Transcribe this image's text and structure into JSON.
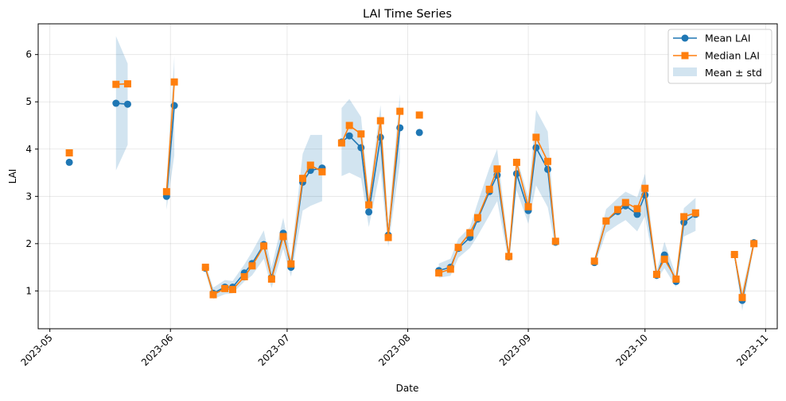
{
  "chart_data": {
    "type": "line",
    "title": "LAI Time Series",
    "xlabel": "Date",
    "ylabel": "LAI",
    "xlim": [
      "2023-04-28",
      "2023-11-04"
    ],
    "ylim": [
      0.2,
      6.65
    ],
    "x_ticks": [
      "2023-05",
      "2023-06",
      "2023-07",
      "2023-08",
      "2023-09",
      "2023-10",
      "2023-11"
    ],
    "y_ticks": [
      1,
      2,
      3,
      4,
      5,
      6
    ],
    "grid": true,
    "legend_position": "top-right",
    "legend": {
      "mean": "Mean LAI",
      "median": "Median LAI",
      "band": "Mean ± std"
    },
    "colors": {
      "mean": "#1f77b4",
      "median": "#ff7f0e",
      "band": "#1f77b4"
    },
    "segments": [
      {
        "dates": [
          "2023-05-06"
        ],
        "mean": [
          3.72
        ],
        "median": [
          3.92
        ],
        "std": [
          0.0
        ]
      },
      {
        "dates": [
          "2023-05-18",
          "2023-05-21"
        ],
        "mean": [
          4.97,
          4.95
        ],
        "median": [
          5.37,
          5.38
        ],
        "std": [
          1.42,
          0.86
        ]
      },
      {
        "dates": [
          "2023-05-31",
          "2023-06-02"
        ],
        "mean": [
          3.0,
          4.92
        ],
        "median": [
          3.1,
          5.42
        ],
        "std": [
          0.28,
          1.05
        ]
      },
      {
        "dates": [
          "2023-06-10",
          "2023-06-12",
          "2023-06-15",
          "2023-06-17",
          "2023-06-20",
          "2023-06-22",
          "2023-06-25",
          "2023-06-27",
          "2023-06-30",
          "2023-07-02",
          "2023-07-05",
          "2023-07-07",
          "2023-07-10"
        ],
        "mean": [
          1.48,
          0.95,
          1.08,
          1.08,
          1.38,
          1.58,
          1.98,
          1.28,
          2.22,
          1.5,
          3.3,
          3.55,
          3.6
        ],
        "median": [
          1.5,
          0.92,
          1.05,
          1.03,
          1.3,
          1.53,
          1.95,
          1.25,
          2.15,
          1.57,
          3.38,
          3.66,
          3.52
        ],
        "std": [
          0.08,
          0.12,
          0.15,
          0.13,
          0.18,
          0.25,
          0.3,
          0.22,
          0.33,
          0.2,
          0.6,
          0.75,
          0.7
        ]
      },
      {
        "dates": [
          "2023-07-15",
          "2023-07-17",
          "2023-07-20",
          "2023-07-22",
          "2023-07-25",
          "2023-07-27",
          "2023-07-30"
        ],
        "mean": [
          4.15,
          4.28,
          4.03,
          2.67,
          4.25,
          2.18,
          4.45
        ],
        "median": [
          4.13,
          4.5,
          4.32,
          2.82,
          4.6,
          2.13,
          4.8
        ],
        "std": [
          0.72,
          0.78,
          0.65,
          0.32,
          0.68,
          0.25,
          0.72
        ]
      },
      {
        "dates": [
          "2023-08-04"
        ],
        "mean": [
          4.35
        ],
        "median": [
          4.72
        ],
        "std": [
          0.0
        ]
      },
      {
        "dates": [
          "2023-08-09",
          "2023-08-12",
          "2023-08-14",
          "2023-08-17",
          "2023-08-19",
          "2023-08-22",
          "2023-08-24",
          "2023-08-27",
          "2023-08-29",
          "2023-09-01",
          "2023-09-03",
          "2023-09-06",
          "2023-09-08"
        ],
        "mean": [
          1.43,
          1.5,
          1.9,
          2.13,
          2.52,
          3.1,
          3.45,
          1.72,
          3.48,
          2.7,
          4.03,
          3.57,
          2.03
        ],
        "median": [
          1.38,
          1.46,
          1.92,
          2.23,
          2.55,
          3.15,
          3.58,
          1.73,
          3.72,
          2.78,
          4.25,
          3.74,
          2.05
        ],
        "std": [
          0.15,
          0.18,
          0.2,
          0.22,
          0.35,
          0.5,
          0.55,
          0.12,
          0.35,
          0.28,
          0.8,
          0.8,
          0.12
        ]
      },
      {
        "dates": [
          "2023-09-18",
          "2023-09-21",
          "2023-09-24",
          "2023-09-26",
          "2023-09-29",
          "2023-10-01",
          "2023-10-04",
          "2023-10-06",
          "2023-10-09",
          "2023-10-11",
          "2023-10-14"
        ],
        "mean": [
          1.6,
          2.48,
          2.68,
          2.8,
          2.62,
          3.03,
          1.33,
          1.76,
          1.2,
          2.45,
          2.62
        ],
        "median": [
          1.63,
          2.48,
          2.72,
          2.87,
          2.74,
          3.17,
          1.35,
          1.67,
          1.25,
          2.57,
          2.65
        ],
        "std": [
          0.08,
          0.25,
          0.28,
          0.3,
          0.36,
          0.45,
          0.1,
          0.28,
          0.12,
          0.3,
          0.35
        ]
      },
      {
        "dates": [
          "2023-10-24",
          "2023-10-26",
          "2023-10-29"
        ],
        "mean": [
          1.77,
          0.8,
          2.02
        ],
        "median": [
          1.77,
          0.86,
          2.0
        ],
        "std": [
          0.05,
          0.22,
          0.08
        ]
      }
    ]
  }
}
